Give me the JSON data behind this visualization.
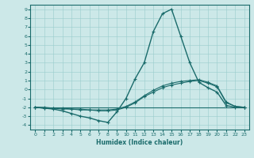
{
  "xlabel": "Humidex (Indice chaleur)",
  "ylabel": "",
  "xlim": [
    -0.5,
    23.5
  ],
  "ylim": [
    -4.5,
    9.5
  ],
  "xticks": [
    0,
    1,
    2,
    3,
    4,
    5,
    6,
    7,
    8,
    9,
    10,
    11,
    12,
    13,
    14,
    15,
    16,
    17,
    18,
    19,
    20,
    21,
    22,
    23
  ],
  "yticks": [
    -4,
    -3,
    -2,
    -1,
    0,
    1,
    2,
    3,
    4,
    5,
    6,
    7,
    8,
    9
  ],
  "bg_color": "#cce8e8",
  "grid_color": "#99cccc",
  "line_color": "#1a6b6b",
  "line1_x": [
    0,
    1,
    2,
    3,
    4,
    5,
    6,
    7,
    8,
    9,
    10,
    11,
    12,
    13,
    14,
    15,
    16,
    17,
    18,
    19,
    20,
    21,
    22,
    23
  ],
  "line1_y": [
    -2.0,
    -2.1,
    -2.2,
    -2.4,
    -2.7,
    -3.0,
    -3.2,
    -3.5,
    -3.7,
    -2.5,
    -1.0,
    1.2,
    3.0,
    6.5,
    8.5,
    9.0,
    6.0,
    3.0,
    0.8,
    0.2,
    -0.3,
    -1.8,
    -2.0,
    -2.0
  ],
  "line2_x": [
    0,
    1,
    2,
    3,
    4,
    5,
    6,
    7,
    8,
    9,
    10,
    11,
    12,
    13,
    14,
    15,
    16,
    17,
    18,
    19,
    20,
    21,
    22,
    23
  ],
  "line2_y": [
    -2.0,
    -2.1,
    -2.1,
    -2.2,
    -2.2,
    -2.3,
    -2.3,
    -2.4,
    -2.4,
    -2.3,
    -2.0,
    -1.5,
    -0.8,
    -0.3,
    0.2,
    0.5,
    0.7,
    0.9,
    1.0,
    0.7,
    0.3,
    -1.5,
    -1.9,
    -2.0
  ],
  "line3_x": [
    0,
    1,
    2,
    3,
    4,
    5,
    6,
    7,
    8,
    9,
    10,
    11,
    12,
    13,
    14,
    15,
    16,
    17,
    18,
    19,
    20,
    21,
    22,
    23
  ],
  "line3_y": [
    -2.0,
    -2.0,
    -2.1,
    -2.1,
    -2.2,
    -2.2,
    -2.3,
    -2.3,
    -2.3,
    -2.2,
    -1.9,
    -1.4,
    -0.7,
    -0.1,
    0.4,
    0.7,
    0.9,
    1.0,
    1.1,
    0.8,
    0.4,
    -1.4,
    -1.9,
    -2.0
  ],
  "line4_x": [
    0,
    1,
    2,
    3,
    4,
    5,
    6,
    7,
    8,
    9,
    10,
    11,
    12,
    13,
    14,
    15,
    16,
    17,
    18,
    19,
    20,
    21,
    22,
    23
  ],
  "line4_y": [
    -2.0,
    -2.0,
    -2.0,
    -2.0,
    -2.0,
    -2.0,
    -2.0,
    -2.0,
    -2.0,
    -2.0,
    -2.0,
    -2.0,
    -2.0,
    -2.0,
    -2.0,
    -2.0,
    -2.0,
    -2.0,
    -2.0,
    -2.0,
    -2.0,
    -2.0,
    -2.0,
    -2.0
  ]
}
